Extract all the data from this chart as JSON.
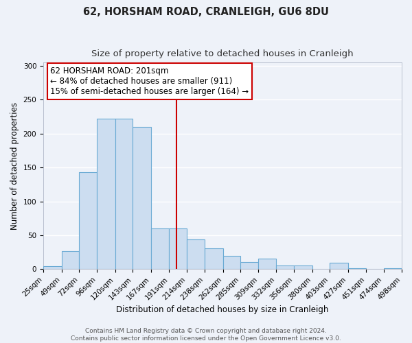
{
  "title": "62, HORSHAM ROAD, CRANLEIGH, GU6 8DU",
  "subtitle": "Size of property relative to detached houses in Cranleigh",
  "xlabel": "Distribution of detached houses by size in Cranleigh",
  "ylabel": "Number of detached properties",
  "bin_edges": [
    25,
    49,
    72,
    96,
    120,
    143,
    167,
    191,
    214,
    238,
    262,
    285,
    309,
    332,
    356,
    380,
    403,
    427,
    451,
    474,
    498
  ],
  "bar_heights": [
    4,
    27,
    143,
    222,
    222,
    210,
    60,
    60,
    44,
    31,
    20,
    10,
    16,
    5,
    5,
    0,
    9,
    1,
    0,
    1
  ],
  "bar_color": "#ccddf0",
  "bar_edge_color": "#6aaad4",
  "property_size": 201,
  "vline_color": "#cc0000",
  "annotation_line1": "62 HORSHAM ROAD: 201sqm",
  "annotation_line2": "← 84% of detached houses are smaller (911)",
  "annotation_line3": "15% of semi-detached houses are larger (164) →",
  "annotation_box_edge_color": "#cc0000",
  "annotation_box_face_color": "#ffffff",
  "ylim": [
    0,
    305
  ],
  "yticks": [
    0,
    50,
    100,
    150,
    200,
    250,
    300
  ],
  "footer_text": "Contains HM Land Registry data © Crown copyright and database right 2024.\nContains public sector information licensed under the Open Government Licence v3.0.",
  "bg_color": "#eef2f9",
  "plot_bg_color": "#eef2f9",
  "grid_color": "#ffffff",
  "title_fontsize": 10.5,
  "subtitle_fontsize": 9.5,
  "xlabel_fontsize": 8.5,
  "ylabel_fontsize": 8.5,
  "footer_fontsize": 6.5,
  "annotation_fontsize": 8.5,
  "tick_fontsize": 7.5
}
